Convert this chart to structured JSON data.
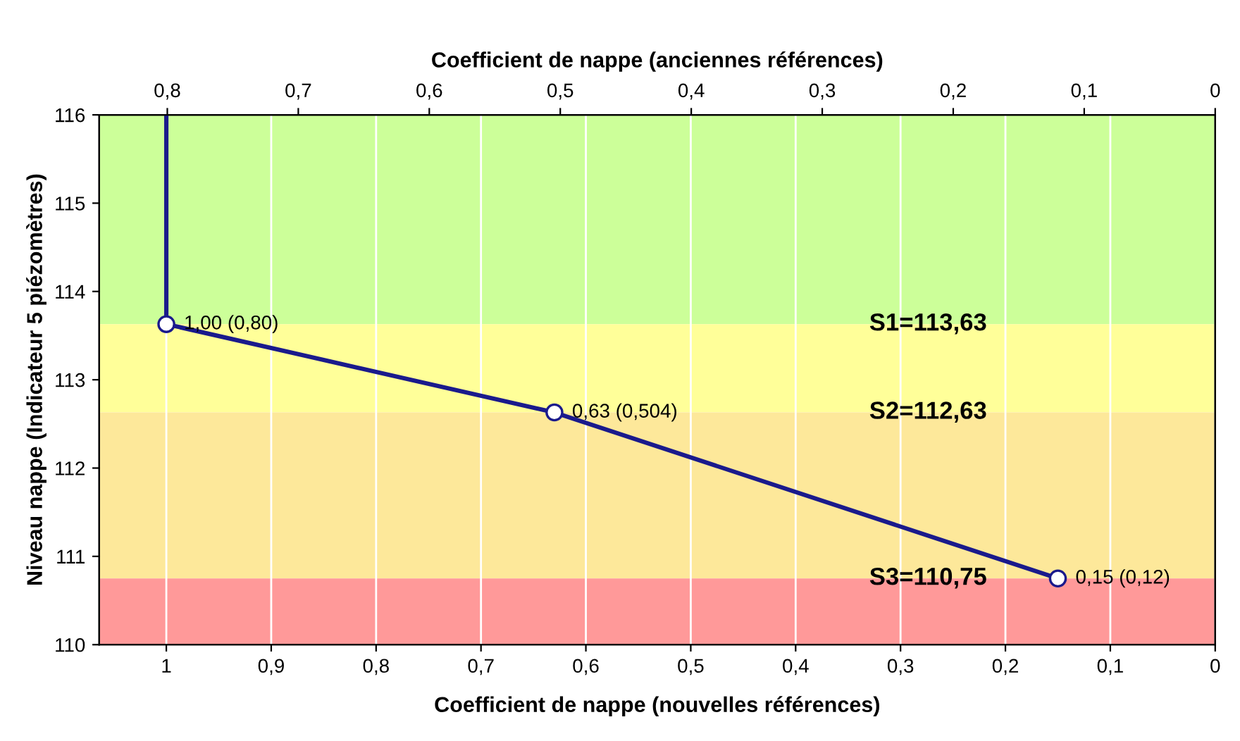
{
  "chart_data": {
    "type": "line",
    "xlabel": "Coefficient de nappe (nouvelles références)",
    "x2label": "Coefficient de nappe (anciennes références)",
    "ylabel": "Niveau nappe (Indicateur 5 piézomètres)",
    "xlim": [
      1.064,
      0
    ],
    "xticks": [
      {
        "value": 1,
        "label": "1"
      },
      {
        "value": 0.9,
        "label": "0,9"
      },
      {
        "value": 0.8,
        "label": "0,8"
      },
      {
        "value": 0.7,
        "label": "0,7"
      },
      {
        "value": 0.6,
        "label": "0,6"
      },
      {
        "value": 0.5,
        "label": "0,5"
      },
      {
        "value": 0.4,
        "label": "0,4"
      },
      {
        "value": 0.3,
        "label": "0,3"
      },
      {
        "value": 0.2,
        "label": "0,2"
      },
      {
        "value": 0.1,
        "label": "0,1"
      },
      {
        "value": 0,
        "label": "0"
      }
    ],
    "x2lim": [
      0.852,
      0
    ],
    "x2ticks": [
      {
        "value": 0.8,
        "label": "0,8"
      },
      {
        "value": 0.7,
        "label": "0,7"
      },
      {
        "value": 0.6,
        "label": "0,6"
      },
      {
        "value": 0.5,
        "label": "0,5"
      },
      {
        "value": 0.4,
        "label": "0,4"
      },
      {
        "value": 0.3,
        "label": "0,3"
      },
      {
        "value": 0.2,
        "label": "0,2"
      },
      {
        "value": 0.1,
        "label": "0,1"
      },
      {
        "value": 0,
        "label": "0"
      }
    ],
    "ylim": [
      110,
      116
    ],
    "yticks": [
      110,
      111,
      112,
      113,
      114,
      115,
      116
    ],
    "grid": "x",
    "bands": [
      {
        "axis": "y",
        "from": 113.63,
        "to": 116,
        "color": "#ccff99"
      },
      {
        "axis": "y",
        "from": 112.63,
        "to": 113.63,
        "color": "#ffff99",
        "label": "S1=113,63"
      },
      {
        "axis": "y",
        "from": 110.75,
        "to": 112.63,
        "color": "#fde89a",
        "label": "S2=112,63"
      },
      {
        "axis": "y",
        "from": 110,
        "to": 110.75,
        "color": "#ff9999",
        "label": "S3=110,75"
      }
    ],
    "series": [
      {
        "color": "#1a1a8c",
        "x": [
          1,
          1
        ],
        "values": [
          116,
          113.63
        ]
      },
      {
        "color": "#1a1a8c",
        "x": [
          1,
          0.63,
          0.15
        ],
        "values": [
          113.63,
          112.63,
          110.75
        ],
        "marker": "circle"
      }
    ],
    "annotations": [
      {
        "text": "1,00 (0,80)",
        "x": 1,
        "y": 113.63
      },
      {
        "text": "0,63 (0,504)",
        "x": 0.63,
        "y": 112.63
      },
      {
        "text": "0,15 (0,12)",
        "x": 0.15,
        "y": 110.75
      }
    ]
  }
}
